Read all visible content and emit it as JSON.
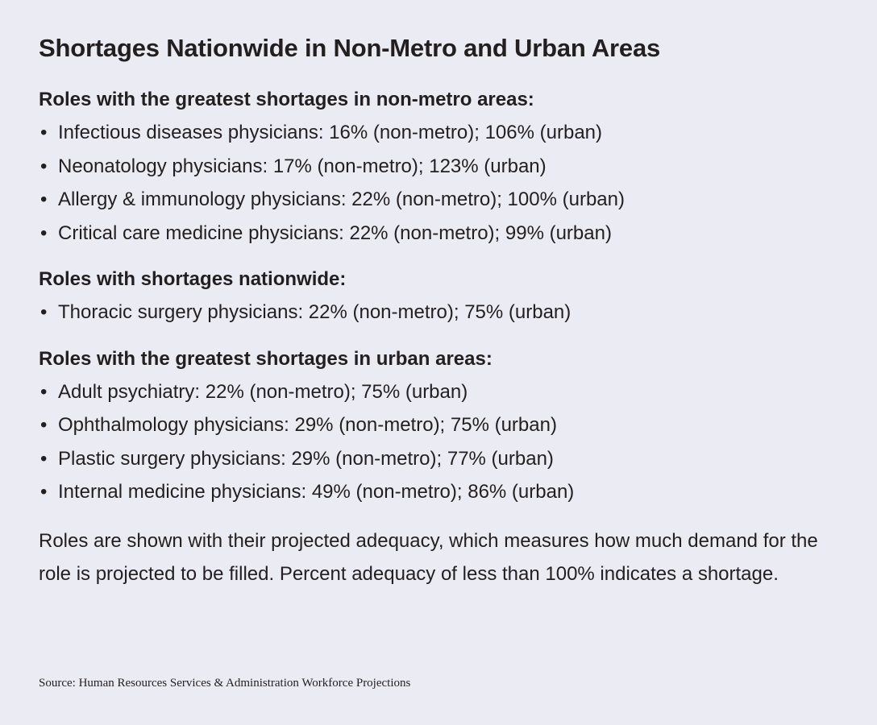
{
  "title": "Shortages Nationwide in Non-Metro and Urban Areas",
  "sections": [
    {
      "heading": "Roles with the greatest shortages in non-metro areas:",
      "items": [
        "Infectious diseases physicians: 16% (non-metro); 106% (urban)",
        "Neonatology physicians: 17% (non-metro); 123% (urban)",
        "Allergy & immunology physicians: 22% (non-metro); 100% (urban)",
        "Critical care medicine physicians: 22% (non-metro); 99% (urban)"
      ]
    },
    {
      "heading": "Roles with shortages nationwide:",
      "items": [
        "Thoracic surgery physicians: 22% (non-metro); 75% (urban)"
      ]
    },
    {
      "heading": "Roles with the greatest shortages in urban areas:",
      "items": [
        "Adult psychiatry: 22% (non-metro); 75% (urban)",
        "Ophthalmology physicians: 29% (non-metro); 75% (urban)",
        "Plastic surgery physicians: 29% (non-metro); 77% (urban)",
        "Internal medicine physicians: 49% (non-metro); 86% (urban)"
      ]
    }
  ],
  "bullet": "•",
  "note": "Roles are shown with their projected adequacy, which measures how much demand for the role is projected to be filled. Percent adequacy of less than 100% indicates a shortage.",
  "source": "Source: Human Resources Services & Administration Workforce Projections",
  "colors": {
    "background": "#ebebf3",
    "text": "#231f20"
  }
}
